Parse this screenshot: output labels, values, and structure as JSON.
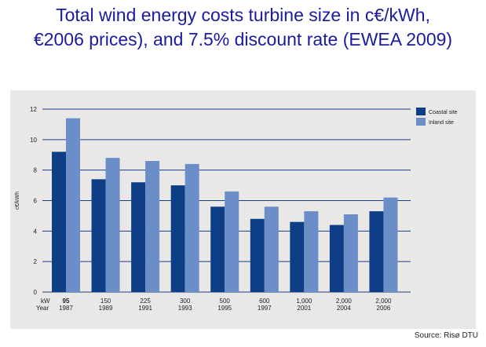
{
  "slide": {
    "title_line1": "Total wind energy costs turbine size in c€/kWh,",
    "title_line2": "€2006 prices), and 7.5% discount rate (EWEA 2009)",
    "source": "Source: Risø DTU"
  },
  "colors": {
    "title": "#1b1b9e",
    "coastal": "#0e3f86",
    "inland": "#6b8dc8",
    "panel_background": "#e9e8e6",
    "gridline": "#1a3f8a"
  },
  "chart_data": {
    "type": "bar",
    "title": "",
    "ylabel": "c€/kWh",
    "xlabel": "",
    "x_row_labels": [
      "kW",
      "Year"
    ],
    "categories": [
      {
        "kw": "95",
        "year": "1987"
      },
      {
        "kw": "150",
        "year": "1989"
      },
      {
        "kw": "225",
        "year": "1991"
      },
      {
        "kw": "300",
        "year": "1993"
      },
      {
        "kw": "500",
        "year": "1995"
      },
      {
        "kw": "600",
        "year": "1997"
      },
      {
        "kw": "1,000",
        "year": "2001"
      },
      {
        "kw": "2,000",
        "year": "2004"
      },
      {
        "kw": "2,000",
        "year": "2006"
      }
    ],
    "series": [
      {
        "name": "Coastal site",
        "values": [
          9.2,
          7.4,
          7.2,
          7.0,
          5.6,
          4.8,
          4.6,
          4.4,
          5.3
        ]
      },
      {
        "name": "Inland site",
        "values": [
          11.4,
          8.8,
          8.6,
          8.4,
          6.6,
          5.6,
          5.3,
          5.1,
          6.2
        ]
      }
    ],
    "ylim": [
      0,
      12
    ],
    "yticks": [
      "0",
      "2",
      "4",
      "6",
      "8",
      "10",
      "12"
    ],
    "grid": true,
    "legend_position": "top-right"
  }
}
